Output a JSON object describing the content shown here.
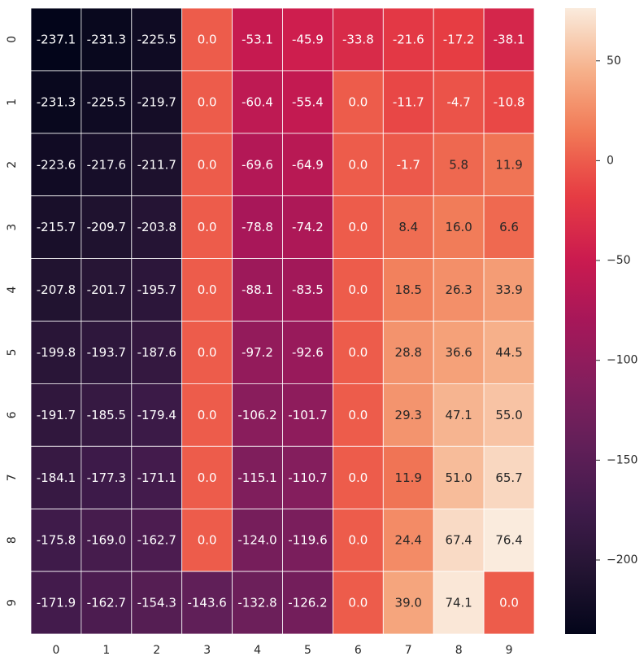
{
  "chart_data": {
    "type": "heatmap",
    "title": "",
    "xlabel": "",
    "ylabel": "",
    "colormap": "rocket",
    "cell_border_color": "#ffffff",
    "x_categories": [
      "0",
      "1",
      "2",
      "3",
      "4",
      "5",
      "6",
      "7",
      "8",
      "9"
    ],
    "y_categories": [
      "0",
      "1",
      "2",
      "3",
      "4",
      "5",
      "6",
      "7",
      "8",
      "9"
    ],
    "values": [
      [
        -237.1,
        -231.3,
        -225.5,
        0.0,
        -53.1,
        -45.9,
        -33.8,
        -21.6,
        -17.2,
        -38.1
      ],
      [
        -231.3,
        -225.5,
        -219.7,
        0.0,
        -60.4,
        -55.4,
        0.0,
        -11.7,
        -4.7,
        -10.8
      ],
      [
        -223.6,
        -217.6,
        -211.7,
        0.0,
        -69.6,
        -64.9,
        0.0,
        -1.7,
        5.8,
        11.9
      ],
      [
        -215.7,
        -209.7,
        -203.8,
        0.0,
        -78.8,
        -74.2,
        0.0,
        8.4,
        16.0,
        6.6
      ],
      [
        -207.8,
        -201.7,
        -195.7,
        0.0,
        -88.1,
        -83.5,
        0.0,
        18.5,
        26.3,
        33.9
      ],
      [
        -199.8,
        -193.7,
        -187.6,
        0.0,
        -97.2,
        -92.6,
        0.0,
        28.8,
        36.6,
        44.5
      ],
      [
        -191.7,
        -185.5,
        -179.4,
        0.0,
        -106.2,
        -101.7,
        0.0,
        29.3,
        47.1,
        55.0
      ],
      [
        -184.1,
        -177.3,
        -171.1,
        0.0,
        -115.1,
        -110.7,
        0.0,
        11.9,
        51.0,
        65.7
      ],
      [
        -175.8,
        -169.0,
        -162.7,
        0.0,
        -124.0,
        -119.6,
        0.0,
        24.4,
        67.4,
        76.4
      ],
      [
        -171.9,
        -162.7,
        -154.3,
        -143.6,
        -132.8,
        -126.2,
        0.0,
        39.0,
        74.1,
        0.0
      ]
    ],
    "value_range": [
      -237.1,
      76.4
    ],
    "colorbar": {
      "ticks": [
        50,
        0,
        -50,
        -100,
        -150,
        -200
      ],
      "tick_labels": [
        "50",
        "0",
        "−50",
        "−100",
        "−150",
        "−200"
      ]
    },
    "annotation_decimals": 1
  }
}
